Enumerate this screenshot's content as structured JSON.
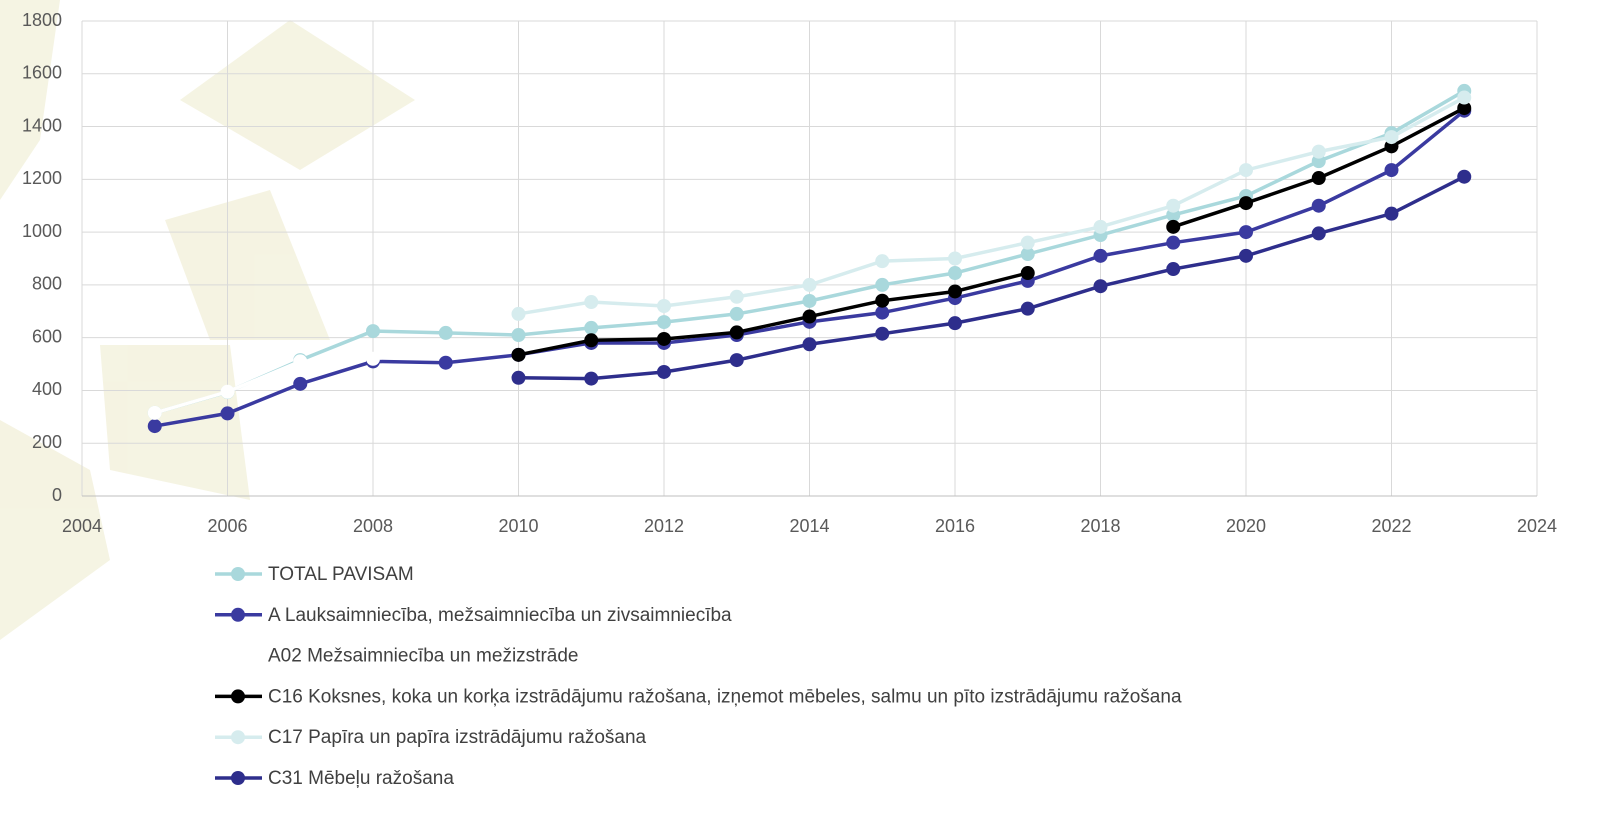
{
  "chart_data": {
    "type": "line",
    "x": [
      2005,
      2006,
      2007,
      2008,
      2009,
      2010,
      2011,
      2012,
      2013,
      2014,
      2015,
      2016,
      2017,
      2018,
      2019,
      2020,
      2021,
      2022,
      2023
    ],
    "xlim": [
      2004,
      2024
    ],
    "xticks": [
      2004,
      2006,
      2008,
      2010,
      2012,
      2014,
      2016,
      2018,
      2020,
      2022,
      2024
    ],
    "ylim": [
      0,
      1800
    ],
    "yticks": [
      0,
      200,
      400,
      600,
      800,
      1000,
      1200,
      1400,
      1600,
      1800
    ],
    "grid": true,
    "legend": "bottom",
    "series": [
      {
        "name": "TOTAL PAVISAM",
        "color": "#a9d8dc",
        "values": [
          315,
          394,
          515,
          625,
          618,
          610,
          637,
          659,
          690,
          739,
          800,
          845,
          917,
          989,
          1065,
          1137,
          1269,
          1375,
          1535
        ]
      },
      {
        "name": "A Lauksaimniecība, mežsaimniecība un zivsaimniecība",
        "color": "#3a3aa0",
        "values": [
          265,
          313,
          425,
          510,
          505,
          535,
          580,
          580,
          610,
          660,
          695,
          750,
          815,
          910,
          960,
          1000,
          1100,
          1235,
          1460
        ]
      },
      {
        "name": "A02 Mežsaimniecība un mežizstrāde",
        "color": "#ffffff",
        "values": [
          315,
          395,
          510,
          520,
          null,
          null,
          null,
          null,
          null,
          null,
          null,
          null,
          null,
          null,
          null,
          null,
          null,
          null,
          null
        ]
      },
      {
        "name": "C16 Koksnes, koka un korķa izstrādājumu ražošana, izņemot mēbeles, salmu un pīto izstrādājumu ražošana",
        "color": "#000000",
        "values": [
          null,
          null,
          null,
          null,
          null,
          535,
          590,
          595,
          620,
          680,
          740,
          775,
          845,
          null,
          1020,
          1110,
          1205,
          1325,
          1470
        ]
      },
      {
        "name": "C17 Papīra un papīra izstrādājumu ražošana",
        "color": "#d6ecee",
        "values": [
          null,
          null,
          null,
          null,
          null,
          690,
          735,
          720,
          755,
          800,
          890,
          900,
          960,
          1020,
          1100,
          1235,
          1305,
          1360,
          1510
        ]
      },
      {
        "name": "C31 Mēbeļu ražošana",
        "color": "#2e2e8c",
        "values": [
          null,
          null,
          null,
          null,
          null,
          448,
          445,
          470,
          515,
          575,
          615,
          655,
          710,
          795,
          860,
          910,
          995,
          1070,
          1210
        ]
      }
    ]
  }
}
